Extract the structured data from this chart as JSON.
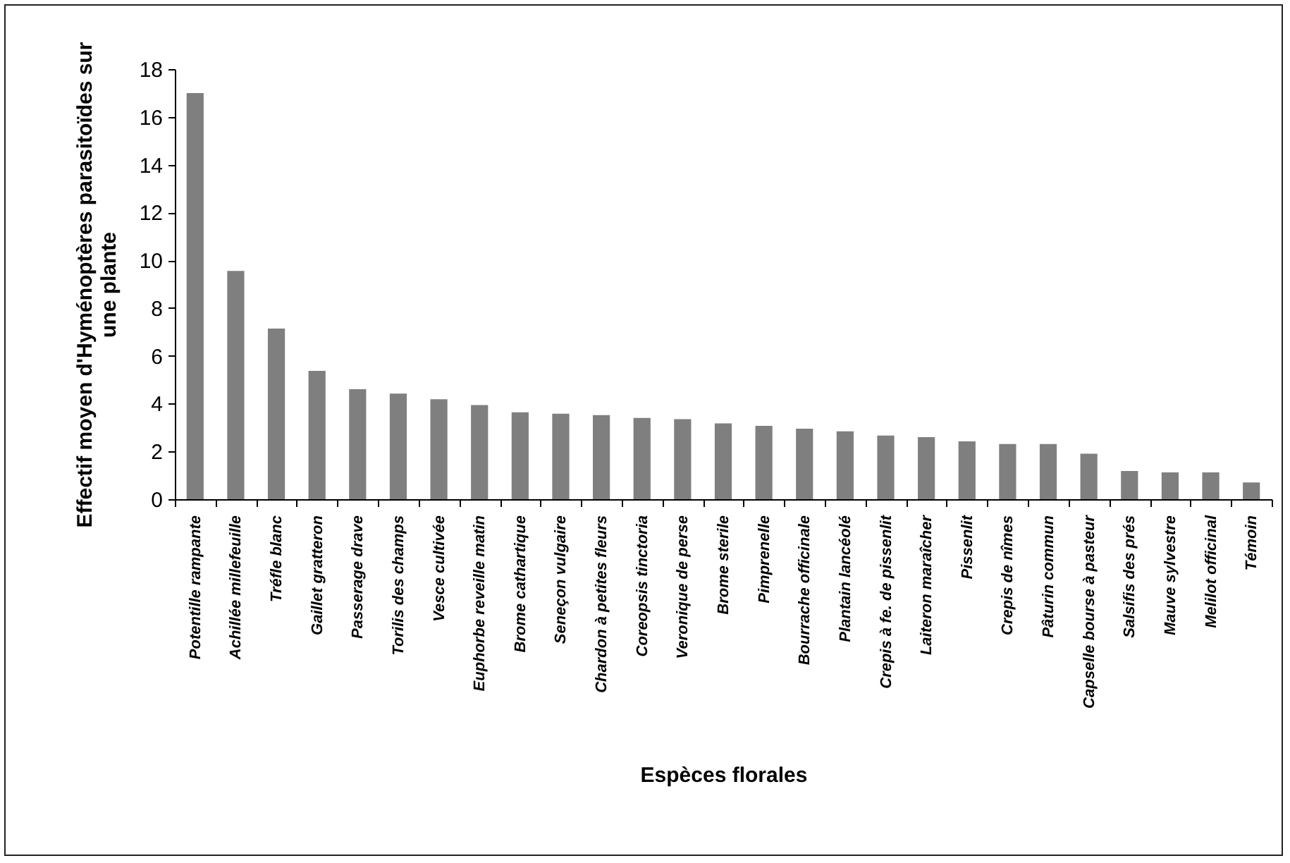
{
  "chart_data": {
    "type": "bar",
    "xlabel": "Espèces florales",
    "ylabel": "Effectif moyen d'Hyménoptères parasitoïdes sur une plante",
    "categories": [
      "Potentille rampante",
      "Achillée millefeuille",
      "Tréfle blanc",
      "Gaillet gratteron",
      "Passerage drave",
      "Torilis des champs",
      "Vesce cultivée",
      "Euphorbe reveille matin",
      "Brome cathartique",
      "Seneçon vulgaire",
      "Chardon à petites fleurs",
      "Coreopsis tinctoria",
      "Veronique de perse",
      "Brome sterile",
      "Pimprenelle",
      "Bourrache officinale",
      "Plantain lancéolé",
      "Crepis à fe. de pissenlit",
      "Laiteron maraîcher",
      "Pissenlit",
      "Crepis de nîmes",
      "Pâturin commun",
      "Capselle bourse à pasteur",
      "Salsifis des prés",
      "Mauve sylvestre",
      "Melilot officinal",
      "Témoin"
    ],
    "values": [
      17.0,
      9.55,
      7.14,
      5.37,
      4.6,
      4.42,
      4.18,
      3.94,
      3.64,
      3.58,
      3.52,
      3.4,
      3.35,
      3.17,
      3.07,
      2.95,
      2.84,
      2.66,
      2.6,
      2.42,
      2.31,
      2.31,
      1.9,
      1.18,
      1.12,
      1.12,
      0.7
    ],
    "color": "#7f7f7f",
    "ylim": [
      0,
      18
    ],
    "yticks": [
      0,
      2,
      4,
      6,
      8,
      10,
      12,
      14,
      16,
      18
    ],
    "grid": false
  }
}
